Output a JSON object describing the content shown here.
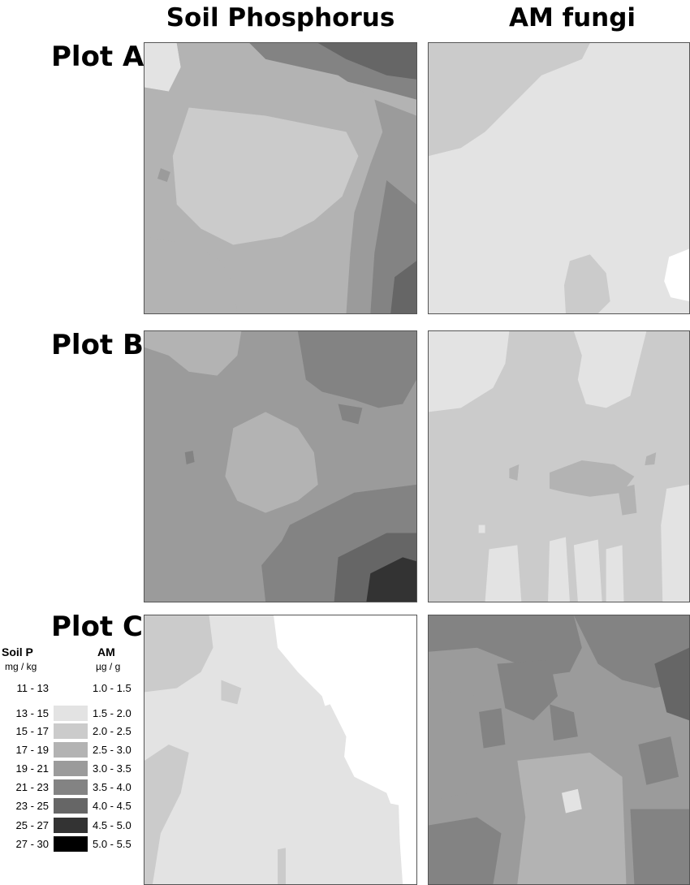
{
  "columns": [
    "Soil Phosphorus",
    "AM fungi"
  ],
  "rows": [
    "Plot A",
    "Plot B",
    "Plot C"
  ],
  "legend": {
    "soil_title": "Soil P",
    "soil_unit": "mg / kg",
    "am_title": "AM",
    "am_unit": "µg / g",
    "classes": [
      {
        "soil": "11 - 13",
        "am": "1.0 - 1.5",
        "color": "#ffffff"
      },
      {
        "soil": "13 - 15",
        "am": "1.5 - 2.0",
        "color": "#e3e3e3"
      },
      {
        "soil": "15 - 17",
        "am": "2.0 - 2.5",
        "color": "#cbcbcb"
      },
      {
        "soil": "17 - 19",
        "am": "2.5 - 3.0",
        "color": "#b3b3b3"
      },
      {
        "soil": "19 - 21",
        "am": "3.0 - 3.5",
        "color": "#9b9b9b"
      },
      {
        "soil": "21 - 23",
        "am": "3.5 - 4.0",
        "color": "#838383"
      },
      {
        "soil": "23 - 25",
        "am": "4.0 - 4.5",
        "color": "#666666"
      },
      {
        "soil": "25 - 27",
        "am": "4.5 - 5.0",
        "color": "#333333"
      },
      {
        "soil": "27 - 30",
        "am": "5.0 - 5.5",
        "color": "#000000"
      }
    ]
  }
}
